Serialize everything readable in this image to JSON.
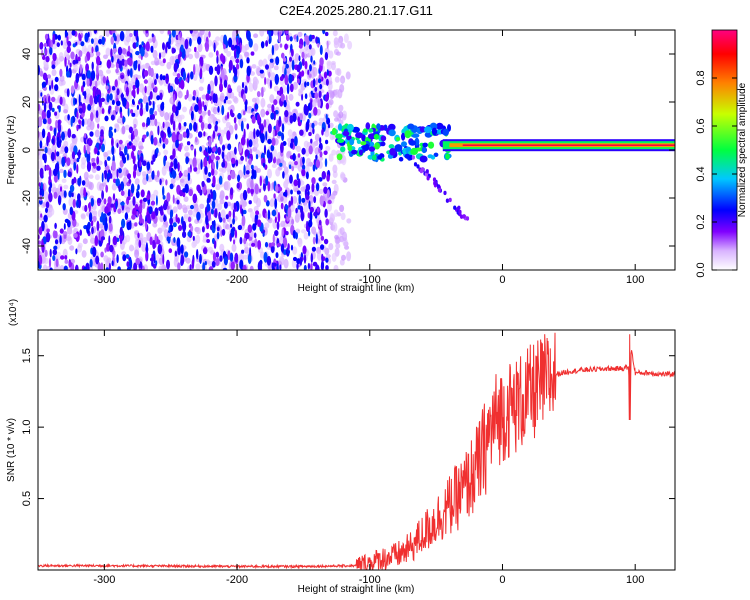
{
  "figure_title": "C2E4.2025.280.21.17.G11",
  "chart_data": [
    {
      "type": "heatmap",
      "title": "C2E4.2025.280.21.17.G11",
      "xlabel": "Height of straight line (km)",
      "ylabel": "Frequency (Hz)",
      "xlim": [
        -350,
        130
      ],
      "ylim": [
        -50,
        50
      ],
      "x_ticks": [
        -300,
        -200,
        -100,
        0,
        100
      ],
      "y_ticks": [
        -40,
        -20,
        0,
        20,
        40
      ],
      "colorbar": {
        "label": "Normalized spectral amplitude",
        "range": [
          0.0,
          1.0
        ],
        "ticks": [
          "0.0",
          "0.2",
          "0.4",
          "0.6",
          "0.8"
        ],
        "colors": [
          "#ffffff",
          "#d9b3ff",
          "#8000ff",
          "#0000ff",
          "#00c8ff",
          "#00ff40",
          "#c8ff00",
          "#ff8000",
          "#ff0000",
          "#ff0080"
        ]
      },
      "features": {
        "noise_region_x": [
          -350,
          -130
        ],
        "noise_amplitude": 0.25,
        "signal_line_x": [
          -130,
          130
        ],
        "signal_line_freq_hz": 2,
        "signal_line_amplitude": 0.95,
        "transition_x": [
          -130,
          -40
        ]
      }
    },
    {
      "type": "line",
      "xlabel": "Height of straight line (km)",
      "ylabel": "SNR (10 * v/v)",
      "y_multiplier": "(x10⁴)",
      "xlim": [
        -350,
        130
      ],
      "ylim": [
        0,
        1.68
      ],
      "x_ticks": [
        -300,
        -200,
        -100,
        0,
        100
      ],
      "y_ticks": [
        0.5,
        1.0,
        1.5
      ],
      "y_tick_labels": [
        "0.5",
        "1.0",
        "1.5"
      ],
      "color": "#f03030",
      "series": [
        {
          "name": "SNR",
          "x": [
            -350,
            -300,
            -200,
            -150,
            -110,
            -100,
            -90,
            -80,
            -70,
            -60,
            -50,
            -40,
            -30,
            -20,
            -15,
            -10,
            -5,
            0,
            10,
            20,
            30,
            40,
            50,
            60,
            80,
            90,
            95,
            96,
            97,
            100,
            110,
            120,
            130
          ],
          "y": [
            0.03,
            0.03,
            0.025,
            0.025,
            0.03,
            0.05,
            0.08,
            0.1,
            0.15,
            0.25,
            0.35,
            0.45,
            0.55,
            0.7,
            0.8,
            0.95,
            1.05,
            1.1,
            1.15,
            1.22,
            1.3,
            1.37,
            1.39,
            1.4,
            1.41,
            1.41,
            1.42,
            1.05,
            1.55,
            1.38,
            1.38,
            1.37,
            1.37
          ]
        }
      ],
      "spike": {
        "x": 96,
        "max": 1.65,
        "min": 1.05
      }
    }
  ]
}
